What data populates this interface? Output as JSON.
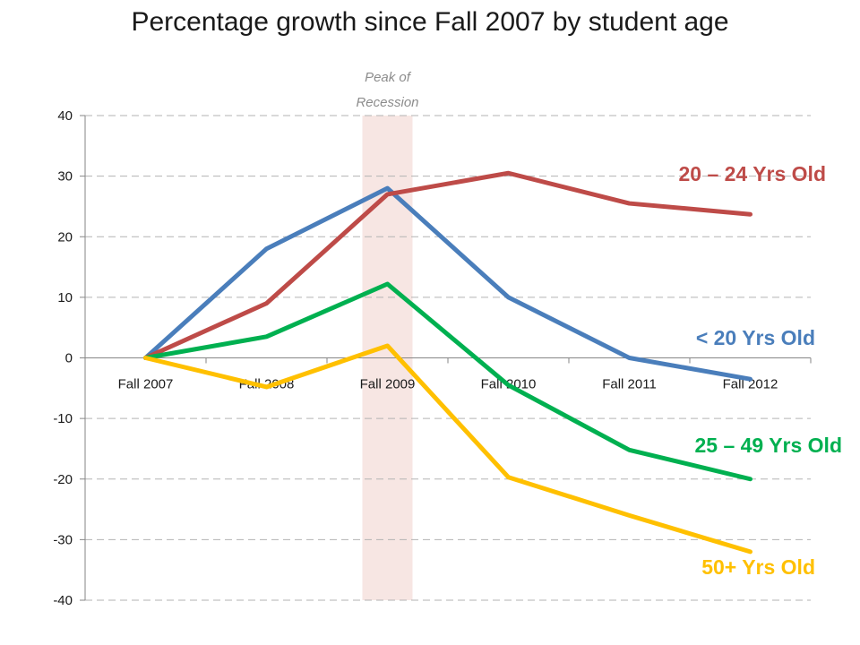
{
  "chart_data": {
    "type": "line",
    "title": "Percentage growth since Fall 2007 by student age",
    "categories": [
      "Fall 2007",
      "Fall 2008",
      "Fall 2009",
      "Fall 2010",
      "Fall 2011",
      "Fall 2012"
    ],
    "ylim": [
      -40,
      40
    ],
    "yticks": [
      40,
      30,
      20,
      10,
      0,
      -10,
      -20,
      -30,
      -40
    ],
    "grid": true,
    "legend": "direct labels at right end of lines",
    "annotation": {
      "text_line1": "Peak of",
      "text_line2": "Recession",
      "category": "Fall 2009",
      "color": "#f7e6e3"
    },
    "series": [
      {
        "name": "< 20 Yrs Old",
        "color": "#4a7ebb",
        "values": [
          0,
          18,
          28,
          10,
          0,
          -3.5
        ]
      },
      {
        "name": "20 – 24 Yrs Old",
        "color": "#be4b48",
        "values": [
          0,
          9,
          27,
          30.5,
          25.5,
          23.7
        ]
      },
      {
        "name": "25 – 49 Yrs Old",
        "color": "#00b050",
        "values": [
          0,
          3.5,
          12.2,
          -4.5,
          -15.2,
          -20
        ]
      },
      {
        "name": "50+ Yrs Old",
        "color": "#ffc000",
        "values": [
          0,
          -4.8,
          2,
          -19.7,
          -26,
          -32
        ]
      }
    ]
  }
}
